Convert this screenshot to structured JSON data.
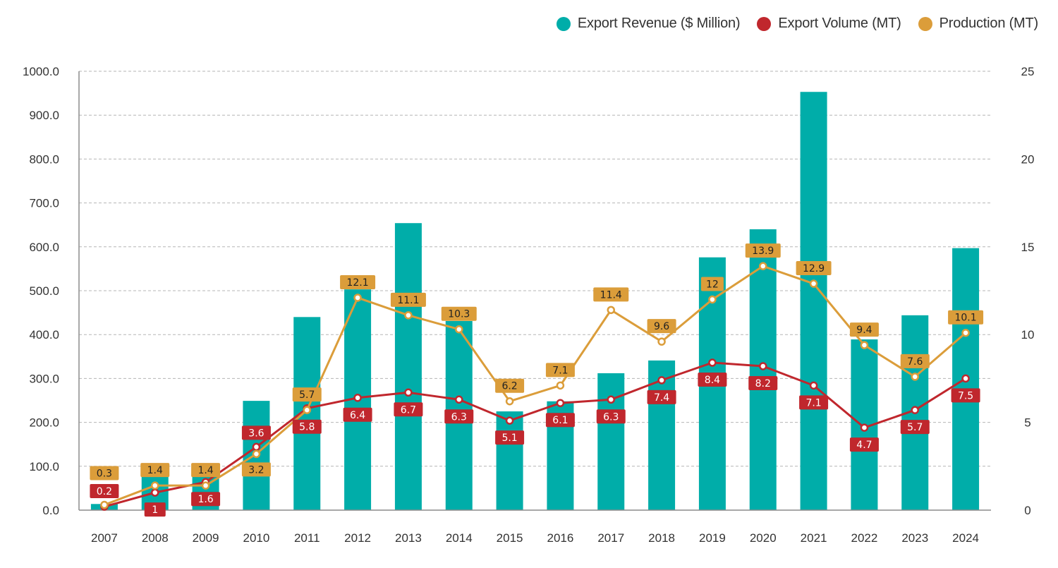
{
  "chart_data": {
    "type": "bar",
    "title": "",
    "xlabel": "",
    "ylabel": "",
    "y2label": "",
    "categories": [
      "2007",
      "2008",
      "2009",
      "2010",
      "2011",
      "2012",
      "2013",
      "2014",
      "2015",
      "2016",
      "2017",
      "2018",
      "2019",
      "2020",
      "2021",
      "2022",
      "2023",
      "2024"
    ],
    "series": [
      {
        "name": "Export Revenue ($ Million)",
        "type": "bar",
        "axis": "left",
        "color": "#00ADA9",
        "values": [
          14,
          76,
          77,
          249,
          440,
          503,
          654,
          431,
          225,
          248,
          312,
          341,
          576,
          640,
          953,
          389,
          444,
          597
        ]
      },
      {
        "name": "Export Volume (MT)",
        "type": "line",
        "axis": "right",
        "color": "#C0272D",
        "values": [
          0.2,
          1,
          1.6,
          3.6,
          5.8,
          6.4,
          6.7,
          6.3,
          5.1,
          6.1,
          6.3,
          7.4,
          8.4,
          8.2,
          7.1,
          4.7,
          5.7,
          7.5
        ],
        "labels": [
          "0.2",
          "1",
          "1.6",
          "3.6",
          "5.8",
          "6.4",
          "6.7",
          "6.3",
          "5.1",
          "6.1",
          "6.3",
          "7.4",
          "8.4",
          "8.2",
          "7.1",
          "4.7",
          "5.7",
          "7.5"
        ]
      },
      {
        "name": "Production (MT)",
        "type": "line",
        "axis": "right",
        "color": "#DB9D3A",
        "values": [
          0.3,
          1.4,
          1.4,
          3.2,
          5.7,
          12.1,
          11.1,
          10.3,
          6.2,
          7.1,
          11.4,
          9.6,
          12,
          13.9,
          12.9,
          9.4,
          7.6,
          10.1
        ],
        "labels": [
          "0.3",
          "1.4",
          "1.4",
          "3.2",
          "5.7",
          "12.1",
          "11.1",
          "10.3",
          "6.2",
          "7.1",
          "11.4",
          "9.6",
          "12",
          "13.9",
          "12.9",
          "9.4",
          "7.6",
          "10.1"
        ]
      }
    ],
    "ylim": [
      0,
      1000
    ],
    "y2lim": [
      0,
      25
    ],
    "yticks": [
      "0.0",
      "100.0",
      "200.0",
      "300.0",
      "400.0",
      "500.0",
      "600.0",
      "700.0",
      "800.0",
      "900.0",
      "1000.0"
    ],
    "y2ticks": [
      "0",
      "5",
      "10",
      "15",
      "20",
      "25"
    ],
    "grid": true,
    "legend": "top-right"
  }
}
